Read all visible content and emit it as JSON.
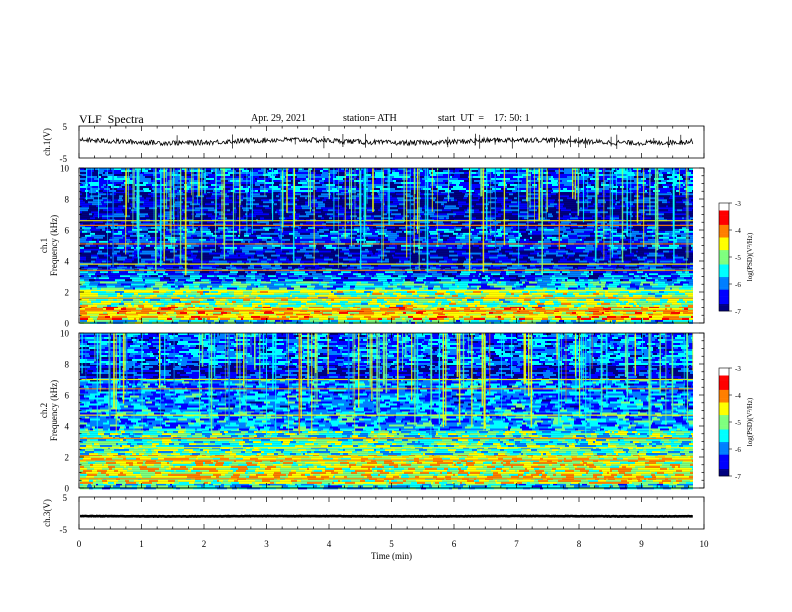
{
  "header": {
    "title": "VLF  Spectra",
    "date": "Apr. 29, 2021",
    "station": "station= ATH",
    "start": "start  UT  =    17: 50: 1"
  },
  "colors": {
    "jet": [
      "#00007f",
      "#0000ff",
      "#007fff",
      "#00ffff",
      "#7fff7f",
      "#ffff00",
      "#ff7f00",
      "#ff0000",
      "#ffffff"
    ],
    "trace": "#000000",
    "background": "#000000"
  },
  "chart_data": [
    {
      "type": "line",
      "panel": "ch1-waveform",
      "ylabel": "ch.1(V)",
      "ylim": [
        -5,
        5
      ],
      "yticks": [
        "5",
        "-5"
      ],
      "xlim": [
        0,
        10
      ],
      "x_data_end": 9.8,
      "description_of_trace": "noisy trace near 0 V with small spikes",
      "baseline": 0.2
    },
    {
      "type": "heatmap",
      "panel": "ch1-spectrogram",
      "ylabel": "ch.1\nFrequency  (kHz)",
      "yticks": [
        "0",
        "2",
        "4",
        "6",
        "8",
        "10"
      ],
      "ylim": [
        0,
        10
      ],
      "xlim": [
        0,
        10
      ],
      "x_data_end": 9.8,
      "colorbar": {
        "label": "log(PSD)(V²/Hz)",
        "ticks": [
          "-3",
          "-4",
          "-5",
          "-6",
          "-7"
        ],
        "range": [
          -7,
          -3
        ]
      },
      "bands_khz": [
        {
          "from": 0.0,
          "to": 0.2,
          "level": -5.5
        },
        {
          "from": 0.2,
          "to": 1.1,
          "level": -4.3
        },
        {
          "from": 1.1,
          "to": 2.2,
          "level": -5.0
        },
        {
          "from": 2.2,
          "to": 2.8,
          "level": -5.6
        },
        {
          "from": 2.8,
          "to": 3.6,
          "level": -6.1
        },
        {
          "from": 3.6,
          "to": 4.8,
          "level": -6.6
        },
        {
          "from": 4.8,
          "to": 6.2,
          "level": -6.3
        },
        {
          "from": 6.2,
          "to": 8.5,
          "level": -6.7
        },
        {
          "from": 8.5,
          "to": 10.0,
          "level": -6.2
        }
      ],
      "lines_khz": [
        0.5,
        0.8,
        1.6,
        2.1,
        3.4,
        3.8,
        5.1,
        6.3,
        6.6
      ]
    },
    {
      "type": "heatmap",
      "panel": "ch2-spectrogram",
      "ylabel": "ch.2\nFrequency  (kHz)",
      "yticks": [
        "0",
        "2",
        "4",
        "6",
        "8",
        "10"
      ],
      "ylim": [
        0,
        10
      ],
      "xlim": [
        0,
        10
      ],
      "x_data_end": 9.8,
      "colorbar": {
        "label": "log(PSD)(V²/Hz)",
        "ticks": [
          "-3",
          "-4",
          "-5",
          "-6",
          "-7"
        ],
        "range": [
          -7,
          -3
        ]
      },
      "bands_khz": [
        {
          "from": 0.0,
          "to": 0.3,
          "level": -5.6
        },
        {
          "from": 0.3,
          "to": 2.2,
          "level": -4.6
        },
        {
          "from": 2.2,
          "to": 3.8,
          "level": -5.3
        },
        {
          "from": 3.8,
          "to": 5.0,
          "level": -5.8
        },
        {
          "from": 5.0,
          "to": 7.0,
          "level": -6.0
        },
        {
          "from": 7.0,
          "to": 8.0,
          "level": -6.6
        },
        {
          "from": 8.0,
          "to": 10.0,
          "level": -6.1
        }
      ],
      "lines_khz": [
        0.6,
        1.8,
        2.0,
        2.6,
        3.2,
        4.7,
        6.4,
        7.0
      ]
    },
    {
      "type": "line",
      "panel": "ch3-waveform",
      "ylabel": "ch.3(V)",
      "ylim": [
        -5,
        5
      ],
      "yticks": [
        "5",
        "-5"
      ],
      "xlim": [
        0,
        10
      ],
      "x_data_end": 9.8,
      "baseline": -1.0
    }
  ],
  "xaxis": {
    "label": "Time  (min)",
    "ticks": [
      "0",
      "1",
      "2",
      "3",
      "4",
      "5",
      "6",
      "7",
      "8",
      "9",
      "10"
    ]
  }
}
